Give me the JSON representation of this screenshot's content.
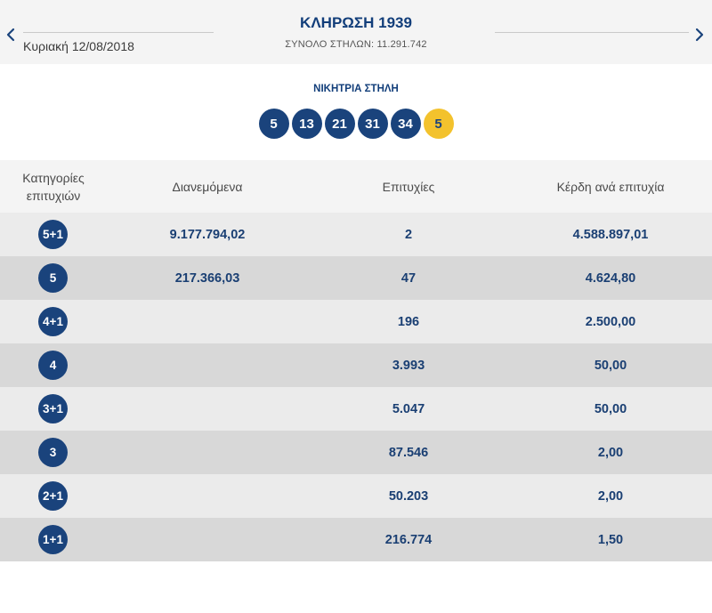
{
  "header": {
    "draw_title": "ΚΛΗΡΩΣΗ 1939",
    "date": "Κυριακή 12/08/2018",
    "total_columns": "ΣΥΝΟΛΟ ΣΤΗΛΩΝ: 11.291.742",
    "prev_icon": "chevron-left-icon",
    "next_icon": "chevron-right-icon"
  },
  "winning": {
    "title": "ΝΙΚΗΤΡΙΑ ΣΤΗΛΗ",
    "numbers": [
      "5",
      "13",
      "21",
      "31",
      "34"
    ],
    "joker": "5"
  },
  "table": {
    "headers": {
      "category": "Κατηγορίες επιτυχιών",
      "distributed": "Διανεμόμενα",
      "wins": "Επιτυχίες",
      "prize": "Κέρδη ανά επιτυχία"
    },
    "rows": [
      {
        "category": "5+1",
        "distributed": "9.177.794,02",
        "wins": "2",
        "prize": "4.588.897,01"
      },
      {
        "category": "5",
        "distributed": "217.366,03",
        "wins": "47",
        "prize": "4.624,80"
      },
      {
        "category": "4+1",
        "distributed": "",
        "wins": "196",
        "prize": "2.500,00"
      },
      {
        "category": "4",
        "distributed": "",
        "wins": "3.993",
        "prize": "50,00"
      },
      {
        "category": "3+1",
        "distributed": "",
        "wins": "5.047",
        "prize": "50,00"
      },
      {
        "category": "3",
        "distributed": "",
        "wins": "87.546",
        "prize": "2,00"
      },
      {
        "category": "2+1",
        "distributed": "",
        "wins": "50.203",
        "prize": "2,00"
      },
      {
        "category": "1+1",
        "distributed": "",
        "wins": "216.774",
        "prize": "1,50"
      }
    ]
  },
  "colors": {
    "primary_blue": "#1a437c",
    "joker_yellow": "#f3c22d",
    "header_bg": "#f4f4f4",
    "row_light": "#ebebeb",
    "row_dark": "#d8d8d8"
  }
}
